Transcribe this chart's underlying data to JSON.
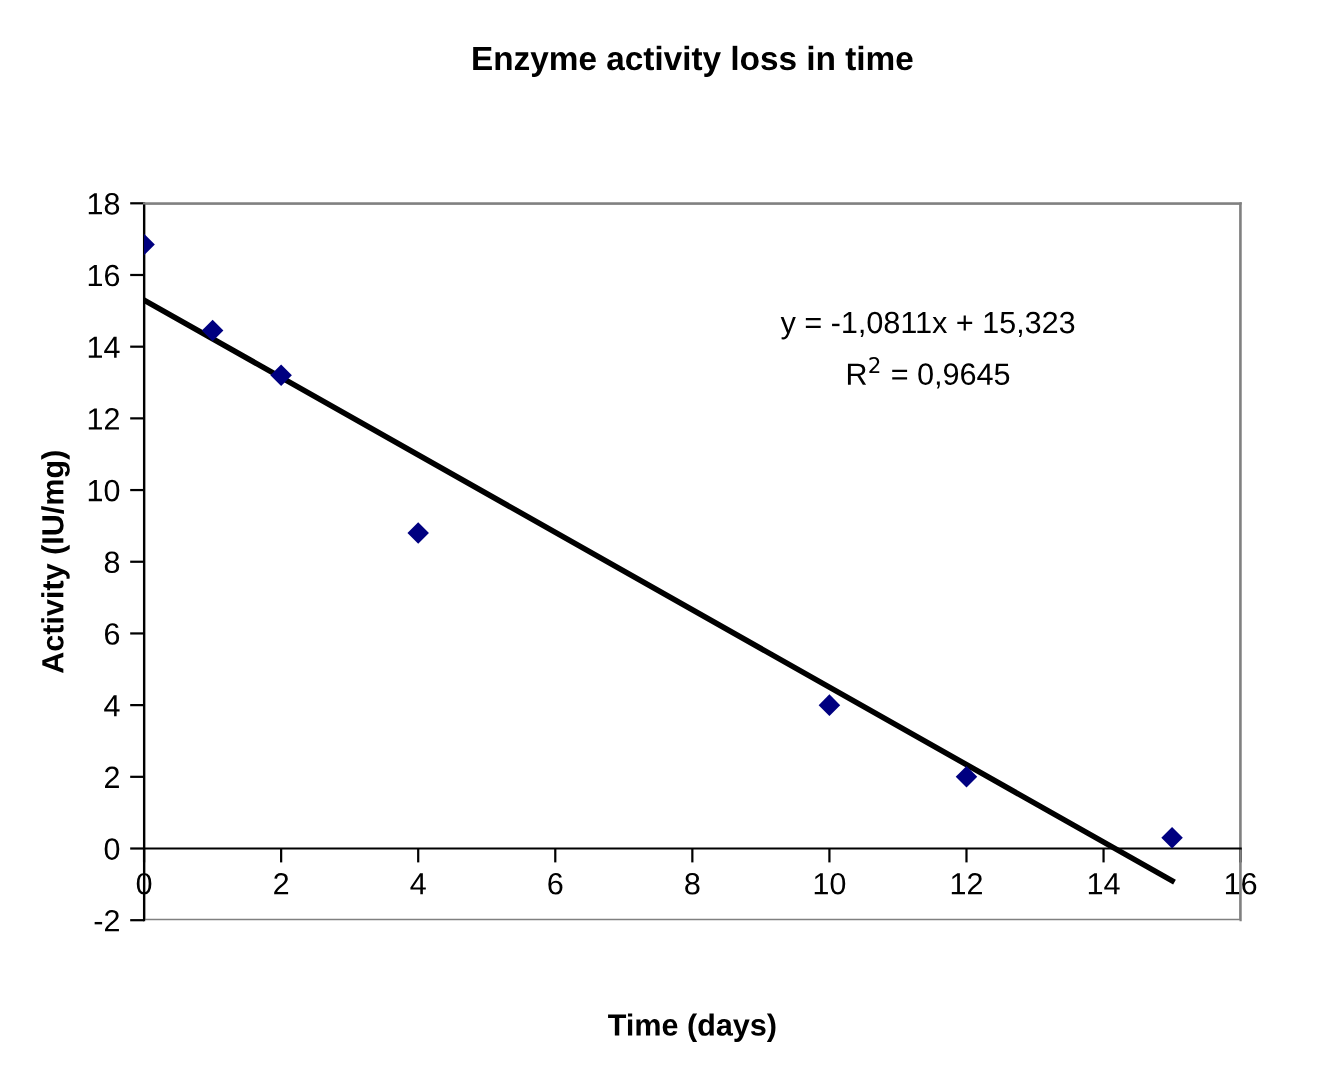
{
  "chart_data": {
    "type": "scatter",
    "title": "Enzyme activity loss in time",
    "xlabel": "Time (days)",
    "ylabel": "Activity (IU/mg)",
    "xlim": [
      0,
      16
    ],
    "xticks": [
      0,
      2,
      4,
      6,
      8,
      10,
      12,
      14,
      16
    ],
    "ylim": [
      -2,
      18
    ],
    "yticks": [
      -2,
      0,
      2,
      4,
      6,
      8,
      10,
      12,
      14,
      16,
      18
    ],
    "grid": false,
    "legend": false,
    "series": [
      {
        "color": "#000080",
        "marker": "diamond",
        "x": [
          0,
          1,
          2,
          4,
          10,
          12,
          15
        ],
        "values": [
          16.85,
          14.45,
          13.2,
          8.8,
          4.0,
          2.0,
          0.3
        ]
      },
      {
        "type": "line",
        "color": "#000000",
        "marker": "none",
        "line_style": "solid",
        "x": [
          0,
          15
        ],
        "values": [
          15.3,
          -0.9
        ]
      }
    ],
    "annotations": [
      "y = -1,0811x + 15,323",
      "R$^{2}$ = 0,9645"
    ]
  }
}
